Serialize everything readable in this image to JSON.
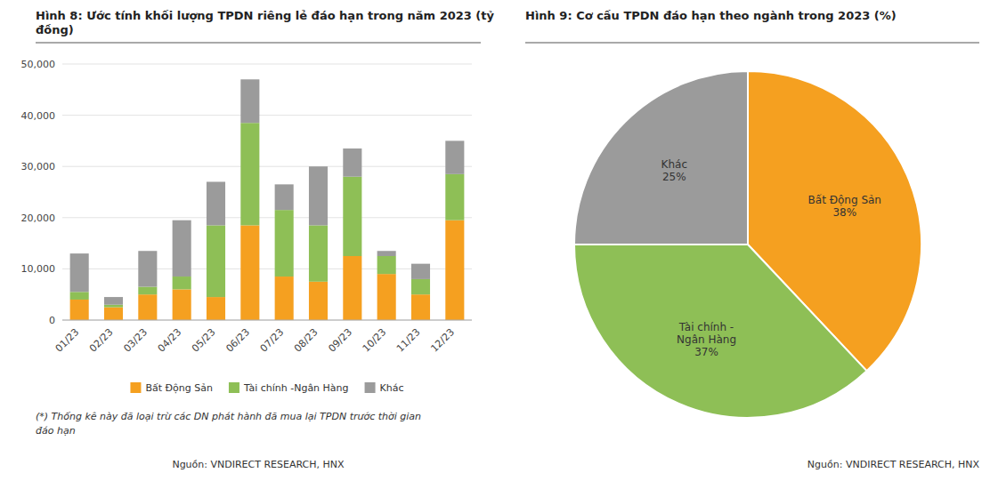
{
  "chart_data": [
    {
      "type": "bar",
      "title": "Hình 8: Ước tính khối lượng TPDN riêng lẻ đáo hạn trong năm 2023 (tỷ\nđồng)",
      "categories": [
        "01/23",
        "02/23",
        "03/23",
        "04/23",
        "05/23",
        "06/23",
        "07/23",
        "08/23",
        "09/23",
        "10/23",
        "11/23",
        "12/23"
      ],
      "series": [
        {
          "name": "Bất Động Sản",
          "color": "#F5A020",
          "values": [
            4000,
            2500,
            5000,
            6000,
            4500,
            18500,
            8500,
            7500,
            12500,
            9000,
            5000,
            19500
          ]
        },
        {
          "name": "Tài chính -Ngân Hàng",
          "color": "#8EBF56",
          "values": [
            1500,
            500,
            1500,
            2500,
            14000,
            20000,
            13000,
            11000,
            15500,
            3500,
            3000,
            9000
          ]
        },
        {
          "name": "Khác",
          "color": "#9B9B9B",
          "values": [
            7500,
            1500,
            7000,
            11000,
            8500,
            8500,
            5000,
            11500,
            5500,
            1000,
            3000,
            6500
          ]
        }
      ],
      "stacked": true,
      "ylim": [
        0,
        50000
      ],
      "yticks": [
        0,
        {
          "value": 10000,
          "label": "10,000"
        },
        {
          "value": 20000,
          "label": "20,000"
        },
        {
          "value": 30000,
          "label": "30,000"
        },
        {
          "value": 40000,
          "label": "40,000"
        },
        {
          "value": 50000,
          "label": "50,000"
        }
      ],
      "grid": true,
      "legend": "bottom",
      "annotations": [
        "(*) Thống kê này đã loại trừ các DN phát hành đã mua lại TPDN trước thời gian\nđáo hạn",
        "Nguồn: VNDIRECT RESEARCH, HNX"
      ]
    },
    {
      "type": "pie",
      "title": "Hình 9: Cơ cấu TPDN đáo hạn theo ngành trong 2023 (%)",
      "categories": [
        "Bất Động Sản",
        "Tài chính -\nNgân Hàng",
        "Khác"
      ],
      "values": [
        38,
        37,
        25
      ],
      "value_labels": [
        "38%",
        "37%",
        "25%"
      ],
      "data_labels": true,
      "colors": [
        "#F5A020",
        "#8EBF56",
        "#9B9B9B"
      ],
      "annotations": [
        "Nguồn: VNDIRECT RESEARCH, HNX"
      ]
    }
  ]
}
